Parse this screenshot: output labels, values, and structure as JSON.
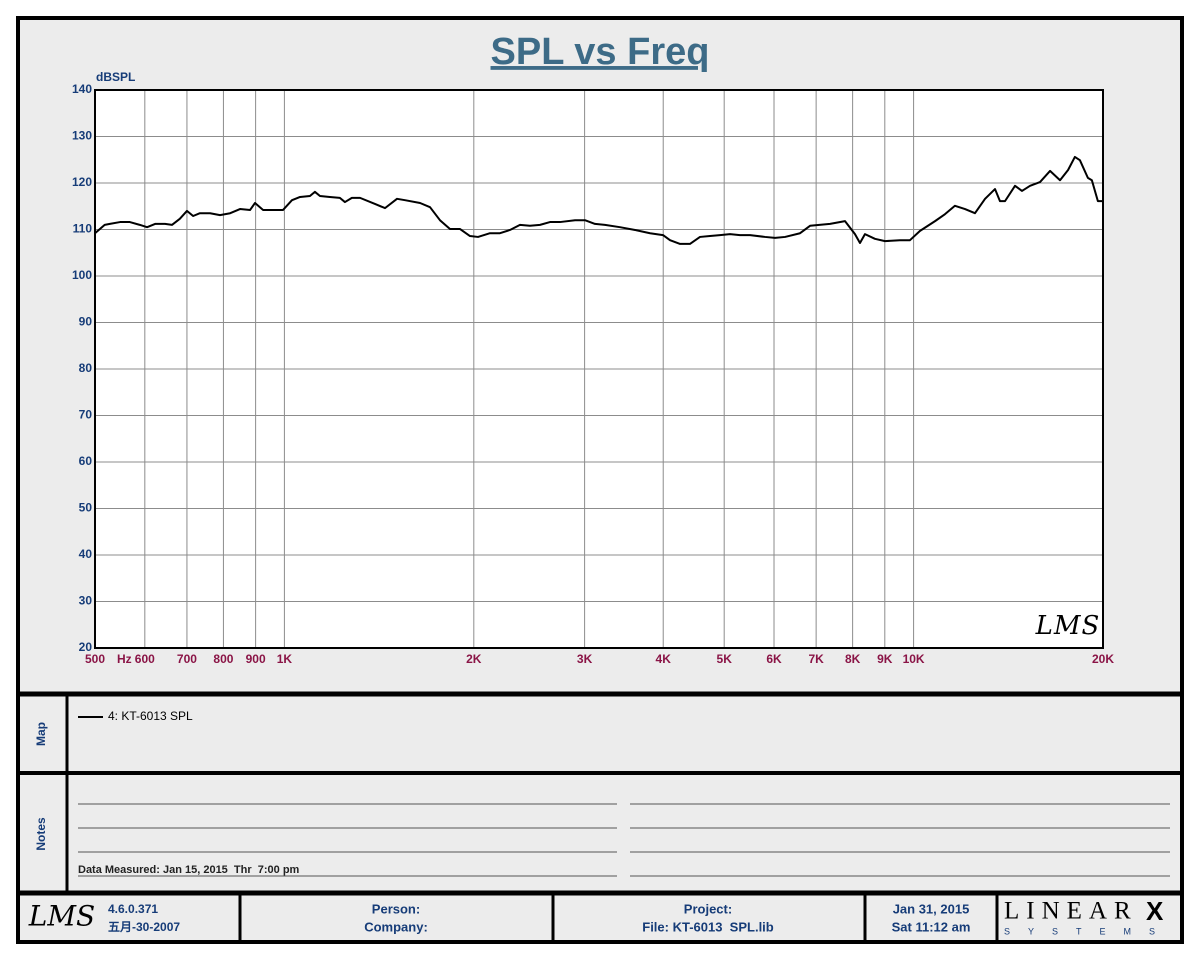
{
  "chart_data": {
    "type": "line",
    "title": "SPL vs Freq",
    "x_unit": "Hz",
    "y_unit": "dBSPL",
    "x_scale": "log",
    "grid": true,
    "xlim": [
      500,
      20000
    ],
    "ylim": [
      20,
      140
    ],
    "xticks": [
      500,
      600,
      700,
      800,
      900,
      {
        "value": 1000,
        "label": "1K"
      },
      {
        "value": 2000,
        "label": "2K"
      },
      {
        "value": 3000,
        "label": "3K"
      },
      {
        "value": 4000,
        "label": "4K"
      },
      {
        "value": 5000,
        "label": "5K"
      },
      {
        "value": 6000,
        "label": "6K"
      },
      {
        "value": 7000,
        "label": "7K"
      },
      {
        "value": 8000,
        "label": "8K"
      },
      {
        "value": 9000,
        "label": "9K"
      },
      {
        "value": 10000,
        "label": "10K"
      },
      {
        "value": 20000,
        "label": "20K"
      }
    ],
    "yticks": [
      20,
      30,
      40,
      50,
      60,
      70,
      80,
      90,
      100,
      110,
      120,
      130,
      140
    ],
    "watermark": "LMS",
    "x": [
      500,
      518,
      528,
      548,
      568,
      589,
      605,
      623,
      646,
      663,
      682,
      700,
      716,
      734,
      762,
      790,
      820,
      850,
      882,
      898,
      925,
      948,
      995,
      1028,
      1059,
      1098,
      1118,
      1139,
      1181,
      1225,
      1248,
      1280,
      1319,
      1393,
      1445,
      1510,
      1555,
      1643,
      1704,
      1767,
      1833,
      1902,
      1972,
      2031,
      2122,
      2201,
      2283,
      2368,
      2456,
      2548,
      2643,
      2741,
      2897,
      3004,
      3116,
      3232,
      3415,
      3609,
      3812,
      3997,
      4101,
      4254,
      4411,
      4576,
      4747,
      4923,
      5108,
      5297,
      5497,
      5807,
      6023,
      6248,
      6600,
      6846,
      7366,
      7780,
      8069,
      8218,
      8370,
      8680,
      9005,
      9510,
      9868,
      10238,
      10817,
      11218,
      11634,
      12071,
      12519,
      12989,
      13470,
      13717,
      13973,
      14494,
      14869,
      15314,
      15883,
      16476,
      17090,
      17600,
      18044,
      18379,
      18924,
      19200,
      19629,
      20000
    ],
    "series": [
      {
        "name": "4: KT-6013 SPL",
        "color": "#000000",
        "values": [
          109.2,
          111,
          111.2,
          111.6,
          111.6,
          111,
          110.5,
          111.2,
          111.2,
          111,
          112.3,
          114,
          112.9,
          113.5,
          113.5,
          113.1,
          113.5,
          114.4,
          114.2,
          115.7,
          114.2,
          114.2,
          114.2,
          116.3,
          117,
          117.2,
          118.1,
          117.2,
          117,
          116.8,
          115.9,
          116.8,
          116.8,
          115.5,
          114.6,
          116.6,
          116.3,
          115.7,
          114.8,
          112,
          110.1,
          110.1,
          108.6,
          108.4,
          109.2,
          109.2,
          109.9,
          111,
          110.8,
          111,
          111.6,
          111.6,
          112,
          112,
          111.2,
          111,
          110.5,
          109.9,
          109.2,
          108.8,
          107.7,
          106.9,
          106.9,
          108.4,
          108.6,
          108.8,
          109,
          108.8,
          108.8,
          108.4,
          108.2,
          108.4,
          109.2,
          110.8,
          111.2,
          111.8,
          109,
          107.1,
          109,
          108,
          107.5,
          107.7,
          107.7,
          109.7,
          111.8,
          113.3,
          115.1,
          114.4,
          113.5,
          116.6,
          118.7,
          116.1,
          116.1,
          119.4,
          118.3,
          119.4,
          120.2,
          122.6,
          120.6,
          122.8,
          125.6,
          124.9,
          121.1,
          120.6,
          116.1,
          116.1
        ]
      }
    ]
  },
  "map": {
    "label": "Map"
  },
  "notes": {
    "label": "Notes",
    "data_measured": "Data Measured: Jan 15, 2015  Thr  7:00 pm"
  },
  "footer": {
    "logo": "LMS",
    "version": "4.6.0.371",
    "version_date": "五月-30-2007",
    "person": "Person:",
    "company": "Company:",
    "project": "Project:",
    "file": "File: KT-6013  SPL.lib",
    "date": "Jan 31, 2015",
    "time": "Sat 11:12 am",
    "brand": "LINEAR",
    "brand_mark": "X",
    "brand_sub": "SYSTEMS"
  }
}
